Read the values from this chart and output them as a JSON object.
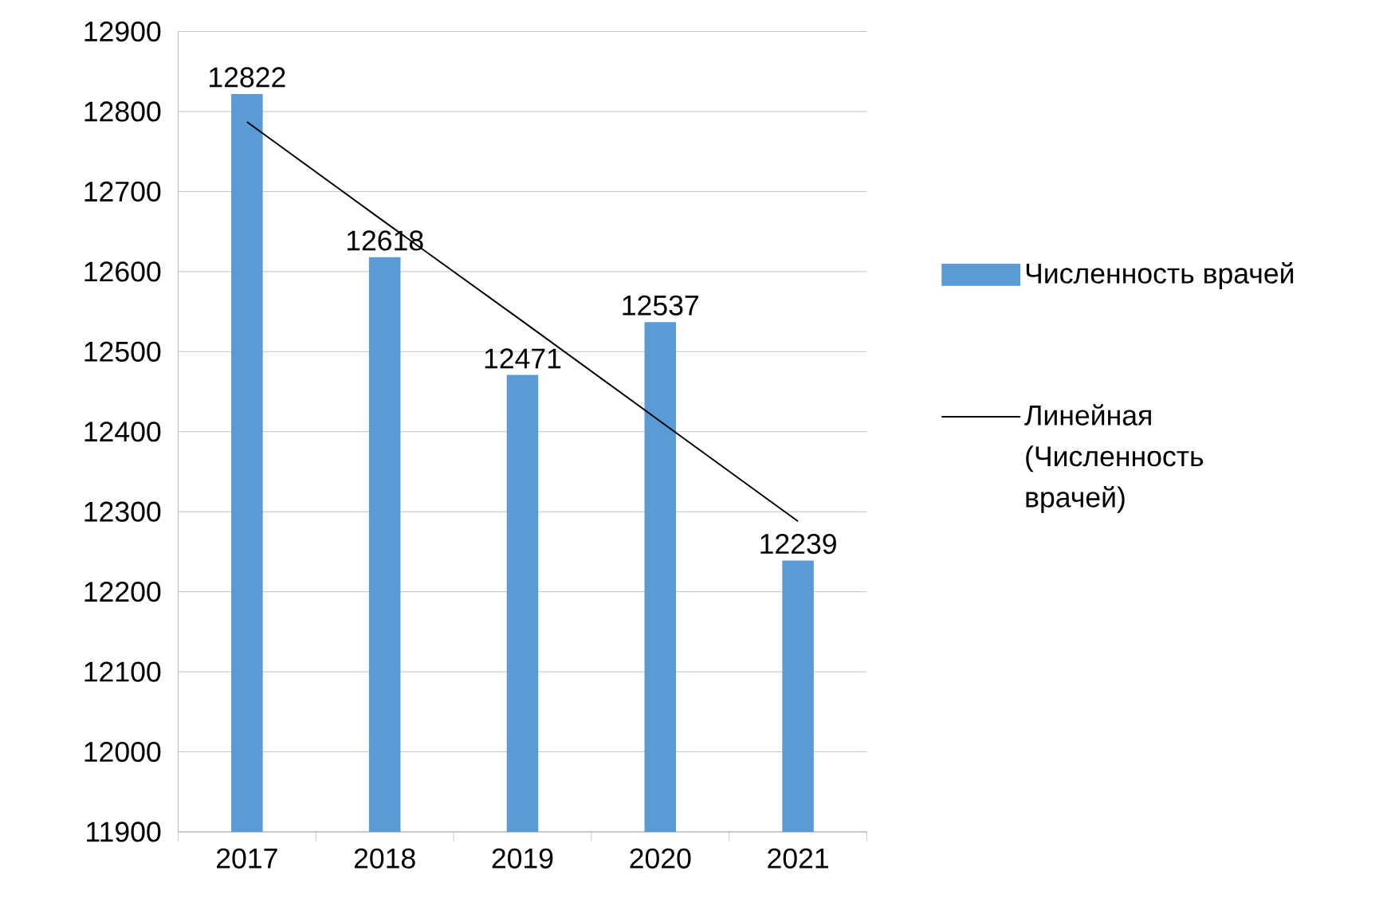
{
  "chart_data": {
    "type": "bar",
    "categories": [
      "2017",
      "2018",
      "2019",
      "2020",
      "2021"
    ],
    "series": [
      {
        "name": "Численность врачей",
        "color": "#5b9bd5",
        "values": [
          12822,
          12618,
          12471,
          12537,
          12239
        ],
        "value_labels": [
          "12822",
          "12618",
          "12471",
          "12537",
          "12239"
        ]
      },
      {
        "name": "Линейная (Численность врачей)",
        "type": "line",
        "color": "#000000",
        "values": [
          12787,
          12662,
          12538,
          12413,
          12288
        ]
      }
    ],
    "ylim": [
      11900,
      12900
    ],
    "yticks": [
      11900,
      12000,
      12100,
      12200,
      12300,
      12400,
      12500,
      12600,
      12700,
      12800,
      12900
    ],
    "grid": "y",
    "legend": "right"
  }
}
